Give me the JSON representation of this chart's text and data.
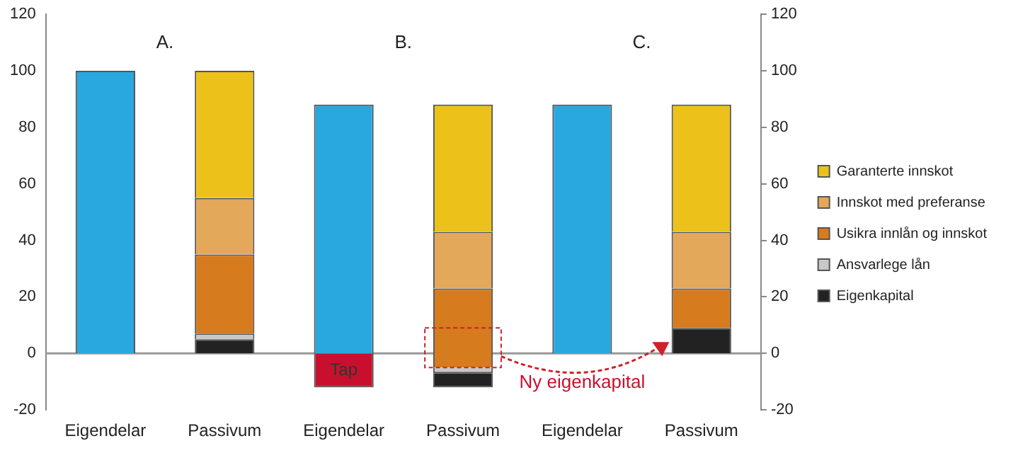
{
  "chart_data": {
    "type": "bar",
    "categories": [
      "Eigendelar",
      "Passivum",
      "Eigendelar",
      "Passivum",
      "Eigendelar",
      "Passivum"
    ],
    "series": [
      {
        "color": "#29a8e0",
        "values": [
          100,
          null,
          88,
          null,
          88,
          null
        ]
      },
      {
        "name": "Tap",
        "color": "#c8102e",
        "values": [
          null,
          null,
          -12,
          null,
          null,
          null
        ]
      },
      {
        "name": "Eigenkapital",
        "color": "#222222",
        "values": [
          null,
          5,
          null,
          5,
          null,
          9
        ],
        "base": [
          null,
          0,
          null,
          -12,
          null,
          0
        ]
      },
      {
        "name": "Ansvarlege lån",
        "color": "#c8c8c8",
        "values": [
          null,
          2,
          null,
          2,
          null,
          null
        ],
        "base": [
          null,
          5,
          null,
          -7,
          null,
          null
        ]
      },
      {
        "name": "Usikra innlån og innskot",
        "color": "#d67b1e",
        "values": [
          null,
          28,
          null,
          28,
          null,
          14
        ],
        "base": [
          null,
          7,
          null,
          -5,
          null,
          9
        ]
      },
      {
        "name": "Innskot med preferanse",
        "color": "#e4a85a",
        "values": [
          null,
          20,
          null,
          20,
          null,
          20
        ],
        "base": [
          null,
          35,
          null,
          23,
          null,
          23
        ]
      },
      {
        "name": "Garanterte innskot",
        "color": "#ecc21a",
        "values": [
          null,
          45,
          null,
          45,
          null,
          45
        ],
        "base": [
          null,
          55,
          null,
          43,
          null,
          43
        ]
      }
    ],
    "ylim": [
      -20,
      120
    ],
    "yticks": [
      -20,
      0,
      20,
      40,
      60,
      80,
      100,
      120
    ],
    "y2lim": [
      -20,
      120
    ],
    "y2ticks": [
      -20,
      0,
      20,
      40,
      60,
      80,
      100,
      120
    ],
    "ref_lines": [
      {
        "axis": "y",
        "value": 0,
        "color": "#999999"
      }
    ],
    "annotations": [
      "A.",
      "B.",
      "C.",
      "Ny eigenkapital"
    ],
    "grid": false,
    "legend": "right"
  }
}
